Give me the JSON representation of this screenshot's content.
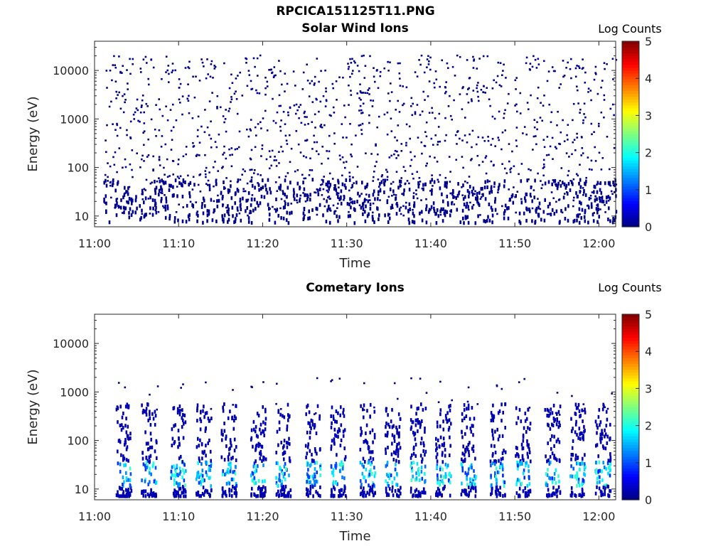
{
  "figure": {
    "title": "RPCICA151125T11.PNG"
  },
  "chart_data": [
    {
      "type": "heatmap",
      "title": "Solar Wind Ions",
      "xlabel": "Time",
      "ylabel": "Energy (eV)",
      "x_ticks": [
        "11:00",
        "11:10",
        "11:20",
        "11:30",
        "11:40",
        "11:50",
        "12:00"
      ],
      "y_ticks": [
        "10",
        "100",
        "1000",
        "10000"
      ],
      "y_scale": "log",
      "ylim": [
        6,
        40000
      ],
      "xlim": [
        "11:00",
        "12:02"
      ],
      "colorbar": {
        "title": "Log Counts",
        "ticks": [
          "0",
          "1",
          "2",
          "3",
          "4",
          "5"
        ],
        "range": [
          0,
          5
        ],
        "colormap": "jet"
      },
      "description_level": "sparse scattered counts (log counts 0-0.5) from ~10 eV to ~25000 eV; denser bursts below ~50 eV",
      "grid": false
    },
    {
      "type": "heatmap",
      "title": "Cometary Ions",
      "xlabel": "Time",
      "ylabel": "Energy (eV)",
      "x_ticks": [
        "11:00",
        "11:10",
        "11:20",
        "11:30",
        "11:40",
        "11:50",
        "12:00"
      ],
      "y_ticks": [
        "10",
        "100",
        "1000",
        "10000"
      ],
      "y_scale": "log",
      "ylim": [
        6,
        40000
      ],
      "xlim": [
        "11:00",
        "12:02"
      ],
      "colorbar": {
        "title": "Log Counts",
        "ticks": [
          "0",
          "1",
          "2",
          "3",
          "4",
          "5"
        ],
        "range": [
          0,
          5
        ],
        "colormap": "jet"
      },
      "bursts_start_minutes": [
        2.5,
        5.5,
        9.0,
        12.0,
        15.0,
        18.5,
        21.5,
        25.0,
        28.0,
        31.5,
        34.5,
        37.5,
        40.5,
        43.5,
        47.0,
        50.0,
        53.5,
        56.5,
        59.5
      ],
      "peak_log_counts": 2.0,
      "grid": false
    }
  ]
}
